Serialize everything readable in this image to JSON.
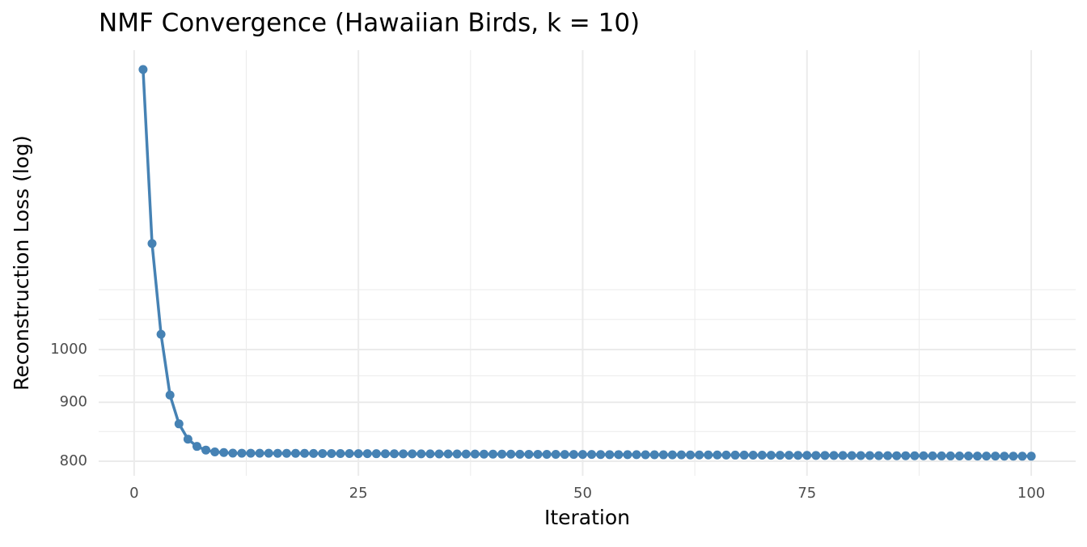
{
  "chart_data": {
    "type": "line",
    "title": "NMF Convergence (Hawaiian Birds, k = 10)",
    "x_label": "Iteration",
    "y_label": "Reconstruction Loss (log)",
    "x": [
      1,
      2,
      3,
      4,
      5,
      6,
      7,
      8,
      9,
      10,
      11,
      12,
      13,
      14,
      15,
      16,
      17,
      18,
      19,
      20,
      21,
      22,
      23,
      24,
      25,
      26,
      27,
      28,
      29,
      30,
      31,
      32,
      33,
      34,
      35,
      36,
      37,
      38,
      39,
      40,
      41,
      42,
      43,
      44,
      45,
      46,
      47,
      48,
      49,
      50,
      51,
      52,
      53,
      54,
      55,
      56,
      57,
      58,
      59,
      60,
      61,
      62,
      63,
      64,
      65,
      66,
      67,
      68,
      69,
      70,
      71,
      72,
      73,
      74,
      75,
      76,
      77,
      78,
      79,
      80,
      81,
      82,
      83,
      84,
      85,
      86,
      87,
      88,
      89,
      90,
      91,
      92,
      93,
      94,
      95,
      96,
      97,
      98,
      99,
      100
    ],
    "series": [
      {
        "name": "loss",
        "color": "#4682b4",
        "values": [
          1750,
          1236,
          1031,
          913,
          862,
          836,
          824,
          818,
          815,
          814,
          813.0,
          812.9,
          812.9,
          812.8,
          812.8,
          812.7,
          812.7,
          812.6,
          812.6,
          812.5,
          812.4,
          812.4,
          812.3,
          812.3,
          812.2,
          812.2,
          812.1,
          812.0,
          812.0,
          811.9,
          811.9,
          811.8,
          811.8,
          811.7,
          811.7,
          811.6,
          811.5,
          811.5,
          811.4,
          811.4,
          811.3,
          811.3,
          811.2,
          811.1,
          811.1,
          811.0,
          811.0,
          810.9,
          810.9,
          810.8,
          810.8,
          810.7,
          810.6,
          810.6,
          810.5,
          810.5,
          810.4,
          810.4,
          810.3,
          810.2,
          810.2,
          810.1,
          810.1,
          810.0,
          810.0,
          809.9,
          809.8,
          809.8,
          809.7,
          809.7,
          809.6,
          809.6,
          809.5,
          809.4,
          809.4,
          809.3,
          809.3,
          809.2,
          809.2,
          809.1,
          809.0,
          809.0,
          808.9,
          808.9,
          808.8,
          808.8,
          808.7,
          808.7,
          808.6,
          808.5,
          808.5,
          808.4,
          808.4,
          808.3,
          808.3,
          808.2,
          808.1,
          808.1,
          808.0,
          808.0
        ]
      }
    ],
    "xlim": [
      -3.95,
      104.95
    ],
    "xticks": [
      0,
      25,
      50,
      75,
      100
    ],
    "xminor": [
      12.5,
      37.5,
      62.5,
      87.5
    ],
    "ylim": [
      777,
      1819
    ],
    "yticks": [
      800,
      900,
      1000
    ],
    "yminor": [
      849,
      949,
      1062,
      1127
    ],
    "ylog": true,
    "grid": true
  }
}
